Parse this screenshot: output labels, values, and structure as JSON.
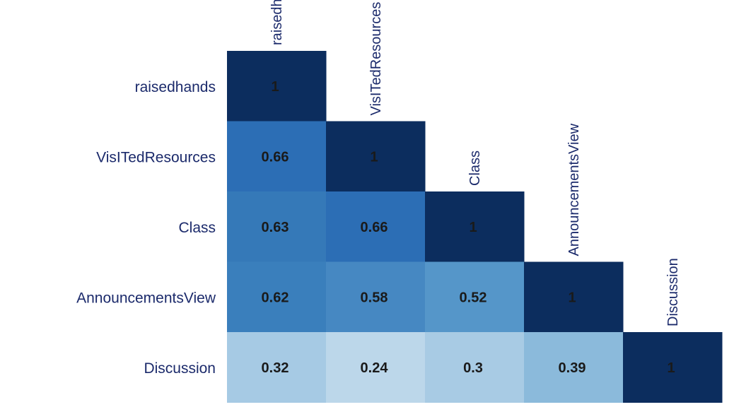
{
  "chart_data": {
    "type": "heatmap",
    "variables": [
      "raisedhands",
      "VisITedResources",
      "Class",
      "AnnouncementsView",
      "Discussion"
    ],
    "matrix": [
      [
        1,
        null,
        null,
        null,
        null
      ],
      [
        0.66,
        1,
        null,
        null,
        null
      ],
      [
        0.63,
        0.66,
        1,
        null,
        null
      ],
      [
        0.62,
        0.58,
        0.52,
        1,
        null
      ],
      [
        0.32,
        0.24,
        0.3,
        0.39,
        1
      ]
    ],
    "labels": [
      [
        "1",
        null,
        null,
        null,
        null
      ],
      [
        "0.66",
        "1",
        null,
        null,
        null
      ],
      [
        "0.63",
        "0.66",
        "1",
        null,
        null
      ],
      [
        "0.62",
        "0.58",
        "0.52",
        "1",
        null
      ],
      [
        "0.32",
        "0.24",
        "0.3",
        "0.39",
        "1"
      ]
    ],
    "colors": [
      [
        "#0c2d5e",
        null,
        null,
        null,
        null
      ],
      [
        "#2c6eb5",
        "#0c2d5e",
        null,
        null,
        null
      ],
      [
        "#3579b8",
        "#2c6eb5",
        "#0c2d5e",
        null,
        null
      ],
      [
        "#3a7fbc",
        "#4688c2",
        "#5596c9",
        "#0c2d5e",
        null
      ],
      [
        "#a6cae4",
        "#bcd7ea",
        "#a8cbe4",
        "#8bbadb",
        "#0c2d5e"
      ]
    ],
    "layout": "lower-triangle",
    "column_label_placement": "diagonal, rotated",
    "grid": false
  }
}
